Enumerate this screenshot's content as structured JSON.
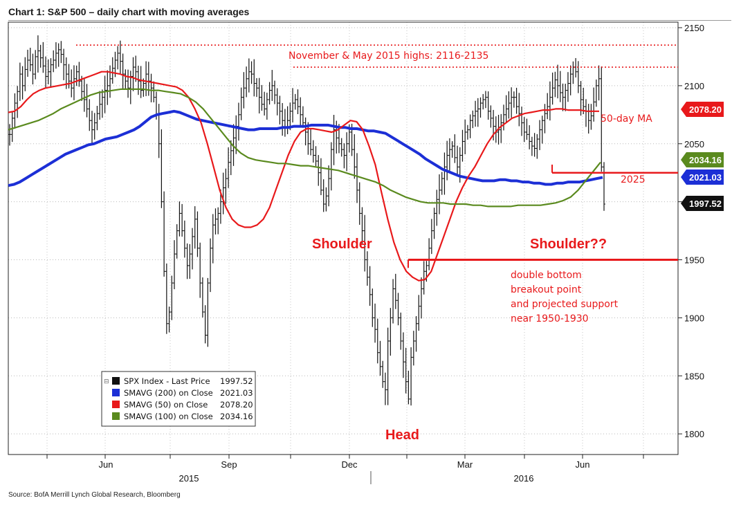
{
  "title": "Chart 1: S&P 500 – daily chart with moving averages",
  "source": "Source: BofA Merrill Lynch Global Research, Bloomberg",
  "colors": {
    "price": "#111111",
    "sma50": "#e8191b",
    "sma100": "#5a8a1e",
    "sma200": "#1c2fd6",
    "annotation": "#e8191b"
  },
  "chart_data": {
    "type": "line",
    "y_axis": {
      "position": "right",
      "ylim": [
        1780,
        2155
      ],
      "ticks": [
        1800,
        1850,
        1900,
        1950,
        2000,
        2050,
        2100,
        2150
      ]
    },
    "x_axis": {
      "month_ticks": [
        "Jun",
        "Sep",
        "Dec",
        "Mar",
        "Jun"
      ],
      "year_labels": [
        "2015",
        "2016"
      ]
    },
    "series": [
      {
        "name": "SPX Index - Last Price",
        "last": "1997.52",
        "style": "ohlc-bars",
        "values": [
          2058,
          2072,
          2085,
          2095,
          2110,
          2100,
          2114,
          2122,
          2118,
          2110,
          2125,
          2130,
          2124,
          2117,
          2108,
          2112,
          2118,
          2122,
          2128,
          2131,
          2127,
          2118,
          2110,
          2104,
          2098,
          2106,
          2112,
          2104,
          2095,
          2088,
          2080,
          2070,
          2062,
          2068,
          2076,
          2084,
          2090,
          2096,
          2100,
          2106,
          2115,
          2122,
          2128,
          2121,
          2110,
          2104,
          2098,
          2108,
          2116,
          2112,
          2104,
          2096,
          2102,
          2110,
          2104,
          2098,
          2090,
          2075,
          2050,
          2000,
          1940,
          1895,
          1905,
          1930,
          1955,
          1975,
          1990,
          1975,
          1960,
          1945,
          1955,
          1970,
          1985,
          1960,
          1930,
          1905,
          1885,
          1930,
          1960,
          1980,
          1985,
          1990,
          2000,
          2012,
          2020,
          2034,
          2044,
          2055,
          2065,
          2075,
          2090,
          2098,
          2106,
          2112,
          2110,
          2102,
          2098,
          2090,
          2084,
          2080,
          2088,
          2096,
          2100,
          2092,
          2085,
          2078,
          2070,
          2064,
          2070,
          2078,
          2085,
          2088,
          2082,
          2075,
          2068,
          2060,
          2050,
          2045,
          2040,
          2035,
          2025,
          2010,
          1998,
          2005,
          2020,
          2045,
          2062,
          2055,
          2050,
          2045,
          2040,
          2050,
          2060,
          2045,
          2030,
          2010,
          1990,
          1975,
          1950,
          1935,
          1920,
          1900,
          1890,
          1870,
          1858,
          1845,
          1838,
          1880,
          1900,
          1925,
          1915,
          1900,
          1880,
          1862,
          1845,
          1830,
          1866,
          1880,
          1895,
          1910,
          1925,
          1940,
          1945,
          1960,
          1975,
          1990,
          2002,
          2010,
          2020,
          2030,
          2040,
          2045,
          2048,
          2038,
          2030,
          2040,
          2052,
          2060,
          2062,
          2070,
          2074,
          2078,
          2080,
          2085,
          2088,
          2090,
          2078,
          2072,
          2065,
          2060,
          2062,
          2068,
          2075,
          2080,
          2085,
          2090,
          2090,
          2082,
          2076,
          2068,
          2060,
          2058,
          2052,
          2048,
          2046,
          2054,
          2062,
          2070,
          2076,
          2082,
          2090,
          2098,
          2105,
          2100,
          2094,
          2090,
          2096,
          2102,
          2110,
          2116,
          2112,
          2100,
          2088,
          2082,
          2078,
          2070,
          2074,
          2086,
          2100,
          2106,
          2030,
          1998
        ]
      },
      {
        "name": "SMAVG (200) on Close",
        "last": "2021.03",
        "values": [
          2014,
          2015,
          2017,
          2020,
          2023,
          2026,
          2029,
          2032,
          2035,
          2038,
          2041,
          2043,
          2045,
          2047,
          2049,
          2050,
          2052,
          2054,
          2055,
          2056,
          2058,
          2060,
          2062,
          2065,
          2069,
          2073,
          2075,
          2076,
          2077,
          2078,
          2077,
          2075,
          2073,
          2071,
          2070,
          2069,
          2068,
          2067,
          2066,
          2065,
          2064,
          2063,
          2062,
          2062,
          2063,
          2063,
          2063,
          2063,
          2064,
          2064,
          2065,
          2065,
          2065,
          2066,
          2066,
          2066,
          2066,
          2065,
          2064,
          2064,
          2063,
          2063,
          2062,
          2061,
          2061,
          2060,
          2059,
          2056,
          2053,
          2050,
          2047,
          2044,
          2041,
          2037,
          2034,
          2031,
          2028,
          2026,
          2024,
          2022,
          2021,
          2020,
          2019,
          2018,
          2018,
          2018,
          2019,
          2019,
          2018,
          2018,
          2017,
          2017,
          2016,
          2016,
          2015,
          2015,
          2016,
          2016,
          2017,
          2017,
          2017,
          2018,
          2019,
          2020,
          2021
        ]
      },
      {
        "name": "SMAVG (50) on Close",
        "last": "2078.20",
        "values": [
          2077,
          2078,
          2082,
          2088,
          2093,
          2096,
          2098,
          2099,
          2100,
          2101,
          2102,
          2104,
          2106,
          2108,
          2110,
          2112,
          2112,
          2111,
          2110,
          2108,
          2107,
          2105,
          2104,
          2103,
          2102,
          2101,
          2100,
          2099,
          2096,
          2090,
          2080,
          2068,
          2050,
          2030,
          2010,
          1995,
          1985,
          1980,
          1978,
          1978,
          1980,
          1985,
          1995,
          2010,
          2025,
          2040,
          2052,
          2060,
          2063,
          2063,
          2062,
          2061,
          2060,
          2062,
          2066,
          2070,
          2069,
          2062,
          2048,
          2032,
          2008,
          1985,
          1965,
          1950,
          1940,
          1935,
          1932,
          1933,
          1940,
          1955,
          1970,
          1985,
          2000,
          2012,
          2022,
          2030,
          2040,
          2050,
          2058,
          2064,
          2068,
          2072,
          2074,
          2076,
          2077,
          2078,
          2079,
          2079,
          2080,
          2080,
          2079,
          2079,
          2079,
          2078,
          2078,
          2078
        ]
      },
      {
        "name": "SMAVG (100) on Close",
        "last": "2034.16",
        "values": [
          2062,
          2064,
          2066,
          2068,
          2070,
          2073,
          2076,
          2080,
          2083,
          2086,
          2089,
          2092,
          2094,
          2095,
          2096,
          2097,
          2097,
          2097,
          2097,
          2096,
          2096,
          2095,
          2094,
          2093,
          2090,
          2086,
          2080,
          2072,
          2064,
          2056,
          2048,
          2042,
          2038,
          2036,
          2035,
          2034,
          2033,
          2033,
          2032,
          2031,
          2031,
          2030,
          2029,
          2028,
          2027,
          2025,
          2023,
          2021,
          2019,
          2017,
          2014,
          2010,
          2007,
          2004,
          2002,
          2000,
          1999,
          1999,
          1999,
          1998,
          1998,
          1998,
          1997,
          1997,
          1996,
          1996,
          1996,
          1996,
          1997,
          1997,
          1997,
          1997,
          1998,
          1999,
          2001,
          2004,
          2010,
          2018,
          2026,
          2034
        ]
      }
    ],
    "annotations": {
      "highs_label": "November & May 2015 highs: 2116-2135",
      "highs_levels": [
        2135,
        2116
      ],
      "ma50_label": "50-day MA",
      "level_2025": "2025",
      "shoulder_left": "Shoulder",
      "head": "Head",
      "shoulder_right": "Shoulder??",
      "breakout_level": 1950,
      "breakout_lines": [
        "double bottom",
        "breakout point",
        "and projected support",
        "near 1950-1930"
      ]
    },
    "tags": [
      {
        "label": "2078.20",
        "value": 2078.2,
        "color": "#e8191b"
      },
      {
        "label": "2034.16",
        "value": 2034.16,
        "color": "#5a8a1e"
      },
      {
        "label": "2021.03",
        "value": 2021.03,
        "color": "#1c2fd6"
      },
      {
        "label": "1997.52",
        "value": 1997.52,
        "color": "#111111"
      }
    ],
    "legend": [
      {
        "label": "SPX Index - Last Price",
        "value": "1997.52",
        "color": "#111111"
      },
      {
        "label": "SMAVG (200) on Close",
        "value": "2021.03",
        "color": "#1c2fd6"
      },
      {
        "label": "SMAVG (50) on Close",
        "value": "2078.20",
        "color": "#e8191b"
      },
      {
        "label": "SMAVG (100) on Close",
        "value": "2034.16",
        "color": "#5a8a1e"
      }
    ]
  }
}
